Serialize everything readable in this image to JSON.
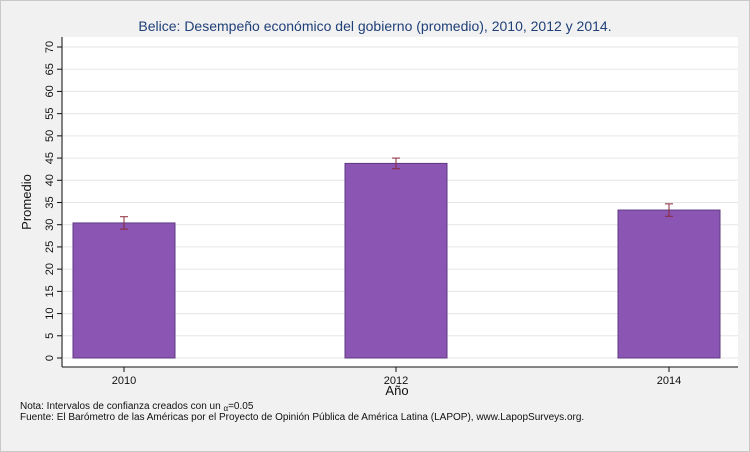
{
  "title": "Belice: Desempeño económico del gobierno (promedio), 2010, 2012 y 2014.",
  "note": {
    "prefix": "Nota: Intervalos de confianza creados con un ",
    "alpha_symbol": "α",
    "suffix": "=0.05"
  },
  "source": "Fuente: El Barómetro de las Américas por el Proyecto de Opinión Pública de América Latina (LAPOP), www.LapopSurveys.org.",
  "colors": {
    "bar_fill": "#8b56b3",
    "bar_stroke": "#5e3a82",
    "error_bar": "#8a2a3a",
    "plot_bg": "#ffffff",
    "grid": "#e6e6e6",
    "title": "#1f3f78"
  },
  "chart_data": {
    "type": "bar",
    "title": "Belice: Desempeño económico del gobierno (promedio), 2010, 2012 y 2014.",
    "xlabel": "Año",
    "ylabel": "Promedio",
    "categories": [
      "2010",
      "2012",
      "2014"
    ],
    "values": [
      30.4,
      43.8,
      33.3
    ],
    "error_low": [
      29.0,
      42.6,
      31.9
    ],
    "error_high": [
      31.8,
      45.0,
      34.7
    ],
    "ylim": [
      0,
      70
    ],
    "yticks": [
      0,
      5,
      10,
      15,
      20,
      25,
      30,
      35,
      40,
      45,
      50,
      55,
      60,
      65,
      70
    ],
    "grid": true,
    "legend": "none"
  }
}
